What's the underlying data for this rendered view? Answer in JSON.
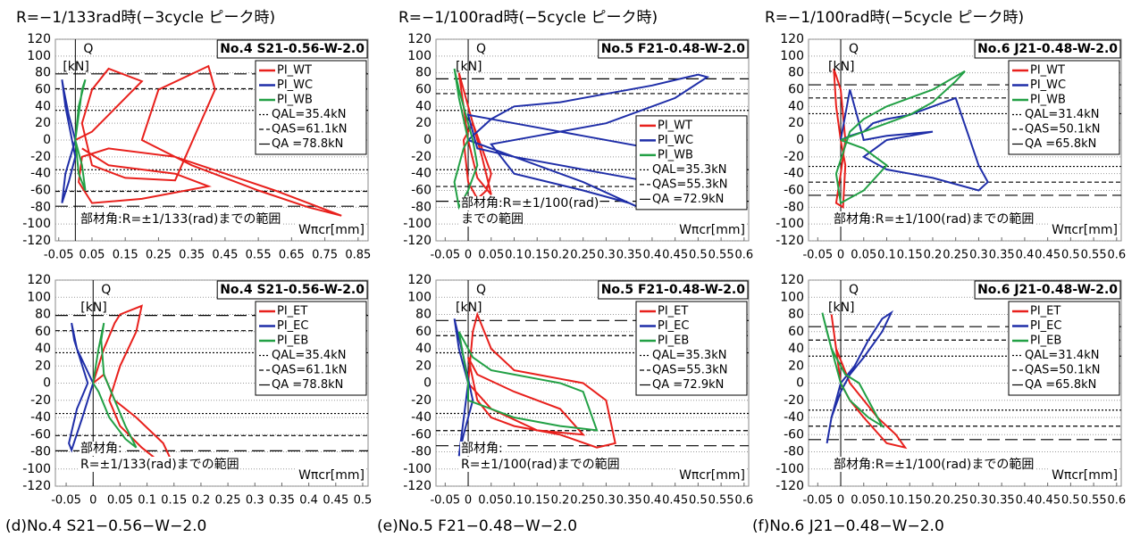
{
  "headers": [
    "R=−1/133rad時(−3cycle ピーク時)",
    "R=−1/100rad時(−5cycle ピーク時)",
    "R=−1/100rad時(−5cycle ピーク時)"
  ],
  "captions": [
    "(d)No.4 S21−0.56−W−2.0",
    "(e)No.5 F21−0.48−W−2.0",
    "(f)No.6 J21−0.48−W−2.0"
  ],
  "chart_data": [
    {
      "type": "line",
      "title": "No.4 S21-0.56-W-2.0",
      "y_label": "Q",
      "y_unit": "[kN]",
      "x_label": "Wπcr[mm]",
      "annotation": [
        "部材角:R=±1/133(rad)までの範囲"
      ],
      "legend_loc": "upper right",
      "grid": true,
      "xlim": [
        -0.06,
        0.88
      ],
      "xticks": [
        -0.05,
        0.05,
        0.15,
        0.25,
        0.35,
        0.45,
        0.55,
        0.65,
        0.75,
        0.85
      ],
      "ylim": [
        -120,
        120
      ],
      "yticks": [
        120,
        100,
        80,
        60,
        40,
        20,
        0,
        -20,
        -40,
        -60,
        -80,
        -100,
        -120
      ],
      "series": [
        {
          "name": "PI_WT",
          "color": "#e8201c",
          "x": [
            0,
            0.05,
            0.1,
            0.15,
            0.2,
            0.1,
            0.05,
            0.02,
            0.05,
            0.15,
            0.3,
            0.42,
            0.4,
            0.25,
            0.2,
            0.35,
            0.55,
            0.7,
            0.8,
            0.6,
            0.3,
            0.1,
            0.02,
            0.01,
            0.05,
            0.2,
            0.4,
            0.3,
            0.1,
            0.02
          ],
          "y": [
            0,
            10,
            30,
            50,
            70,
            85,
            60,
            20,
            -30,
            -45,
            -48,
            60,
            88,
            60,
            0,
            -30,
            -60,
            -80,
            -90,
            -60,
            -20,
            -10,
            -20,
            -50,
            -75,
            -70,
            -55,
            -40,
            -30,
            -10
          ]
        },
        {
          "name": "PI_WC",
          "color": "#1f2ea8",
          "x": [
            0,
            -0.02,
            -0.035,
            -0.04,
            -0.03,
            -0.01,
            0,
            -0.02,
            -0.04,
            -0.03,
            0
          ],
          "y": [
            0,
            30,
            60,
            72,
            40,
            0,
            -20,
            -50,
            -75,
            -40,
            0
          ]
        },
        {
          "name": "PI_WB",
          "color": "#22a045",
          "x": [
            0,
            0.01,
            0.02,
            0.03,
            0.01,
            0,
            0.02,
            0.03,
            0.01,
            0
          ],
          "y": [
            0,
            30,
            60,
            72,
            40,
            0,
            -30,
            -60,
            -40,
            0
          ]
        }
      ],
      "ref_lines": [
        {
          "label": "QAL=35.4kN",
          "value": 35.4,
          "dash": "dotted"
        },
        {
          "label": "QAS=61.1kN",
          "value": 61.1,
          "dash": "dashed"
        },
        {
          "label": "QA =78.8kN",
          "value": 78.8,
          "dash": "longdash"
        }
      ]
    },
    {
      "type": "line",
      "title": "No.5 F21-0.48-W-2.0",
      "y_label": "Q",
      "y_unit": "[kN]",
      "x_label": "Wπcr[mm]",
      "annotation": [
        "部材角:R=±1/100(rad)",
        "までの範囲"
      ],
      "legend_loc": "center right",
      "grid": true,
      "xlim": [
        -0.07,
        0.61
      ],
      "xticks": [
        -0.05,
        0,
        0.05,
        0.1,
        0.15,
        0.2,
        0.25,
        0.3,
        0.35,
        0.4,
        0.45,
        0.5,
        0.55,
        0.6
      ],
      "ylim": [
        -120,
        120
      ],
      "yticks": [
        120,
        100,
        80,
        60,
        40,
        20,
        0,
        -20,
        -40,
        -60,
        -80,
        -100,
        -120
      ],
      "series": [
        {
          "name": "PI_WT",
          "color": "#e8201c",
          "x": [
            0,
            -0.01,
            -0.02,
            -0.01,
            0.01,
            0.03,
            0.05,
            0.04,
            0.02,
            0,
            -0.01,
            0.01,
            0.03,
            0.05,
            0.02,
            0
          ],
          "y": [
            0,
            40,
            80,
            60,
            20,
            -10,
            -40,
            -60,
            -70,
            -50,
            0,
            20,
            -20,
            -65,
            -45,
            0
          ]
        },
        {
          "name": "PI_WC",
          "color": "#1f2ea8",
          "x": [
            0,
            0.05,
            0.1,
            0.2,
            0.3,
            0.4,
            0.5,
            0.52,
            0.45,
            0.3,
            0.15,
            0.05,
            0.1,
            0.25,
            0.35,
            0.37,
            0.25,
            0.1,
            0.02,
            0,
            0.1,
            0.25,
            0.4,
            0.5,
            0.3,
            0.1,
            0
          ],
          "y": [
            0,
            25,
            40,
            45,
            55,
            65,
            78,
            75,
            50,
            20,
            5,
            -5,
            -40,
            -60,
            -75,
            -80,
            -50,
            -20,
            -10,
            30,
            20,
            5,
            -10,
            -60,
            -40,
            -20,
            0
          ]
        },
        {
          "name": "PI_WB",
          "color": "#22a045",
          "x": [
            0,
            -0.02,
            -0.03,
            -0.02,
            0,
            0.01,
            0.02,
            0,
            -0.02,
            -0.03,
            -0.01,
            0
          ],
          "y": [
            0,
            50,
            85,
            60,
            20,
            0,
            -30,
            -60,
            -80,
            -50,
            -10,
            0
          ]
        }
      ],
      "ref_lines": [
        {
          "label": "QAL=35.3kN",
          "value": 35.3,
          "dash": "dotted"
        },
        {
          "label": "QAS=55.3kN",
          "value": 55.3,
          "dash": "dashed"
        },
        {
          "label": "QA =72.9kN",
          "value": 72.9,
          "dash": "longdash"
        }
      ]
    },
    {
      "type": "line",
      "title": "No.6 J21-0.48-W-2.0",
      "y_label": "Q",
      "y_unit": "[kN]",
      "x_label": "Wπcr[mm]",
      "annotation": [
        "部材角:R=±1/100(rad)までの範囲"
      ],
      "legend_loc": "upper right",
      "grid": true,
      "xlim": [
        -0.07,
        0.61
      ],
      "xticks": [
        -0.05,
        0,
        0.05,
        0.1,
        0.15,
        0.2,
        0.25,
        0.3,
        0.35,
        0.4,
        0.45,
        0.5,
        0.55,
        0.6
      ],
      "ylim": [
        -120,
        120
      ],
      "yticks": [
        120,
        100,
        80,
        60,
        40,
        20,
        0,
        -20,
        -40,
        -60,
        -80,
        -100,
        -120
      ],
      "series": [
        {
          "name": "PI_WT",
          "color": "#e8201c",
          "x": [
            0,
            -0.01,
            -0.015,
            0,
            0.01,
            0,
            -0.01,
            0.005,
            0.01,
            0
          ],
          "y": [
            0,
            40,
            85,
            60,
            0,
            -40,
            -75,
            -80,
            -30,
            0
          ]
        },
        {
          "name": "PI_WC",
          "color": "#1f2ea8",
          "x": [
            0,
            0.02,
            0.05,
            0.07,
            0.1,
            0.15,
            0.2,
            0.25,
            0.3,
            0.32,
            0.3,
            0.2,
            0.1,
            0.05,
            0.1,
            0.2,
            0.1,
            0.05,
            0.02,
            0
          ],
          "y": [
            0,
            5,
            10,
            20,
            25,
            30,
            40,
            50,
            -30,
            -50,
            -60,
            -45,
            -35,
            -20,
            0,
            10,
            5,
            0,
            60,
            0
          ]
        },
        {
          "name": "PI_WB",
          "color": "#22a045",
          "x": [
            0,
            0.05,
            0.1,
            0.15,
            0.2,
            0.25,
            0.27,
            0.2,
            0.1,
            0.05,
            0.02,
            -0.01,
            0,
            0.05,
            0.1,
            0.05,
            0
          ],
          "y": [
            0,
            10,
            20,
            30,
            45,
            70,
            82,
            60,
            40,
            25,
            10,
            -40,
            -75,
            -60,
            -30,
            -10,
            0
          ]
        }
      ],
      "ref_lines": [
        {
          "label": "QAL=31.4kN",
          "value": 31.4,
          "dash": "dotted"
        },
        {
          "label": "QAS=50.1kN",
          "value": 50.1,
          "dash": "dashed"
        },
        {
          "label": "QA =65.8kN",
          "value": 65.8,
          "dash": "longdash"
        }
      ]
    },
    {
      "type": "line",
      "title": "No.4 S21-0.56-W-2.0",
      "y_label": "Q",
      "y_unit": "[kN]",
      "x_label": "Wπcr[mm]",
      "annotation": [
        "部材角:",
        "R=±1/133(rad)までの範囲"
      ],
      "legend_loc": "upper right",
      "grid": true,
      "xlim": [
        -0.07,
        0.51
      ],
      "xticks": [
        -0.05,
        0,
        0.05,
        0.1,
        0.15,
        0.2,
        0.25,
        0.3,
        0.35,
        0.4,
        0.45,
        0.5
      ],
      "ylim": [
        -120,
        120
      ],
      "yticks": [
        120,
        100,
        80,
        60,
        40,
        20,
        0,
        -20,
        -40,
        -60,
        -80,
        -100,
        -120
      ],
      "series": [
        {
          "name": "PI_ET",
          "color": "#e8201c",
          "x": [
            0,
            0.02,
            0.04,
            0.05,
            0.07,
            0.09,
            0.08,
            0.05,
            0.03,
            0.05,
            0.09,
            0.12,
            0.15,
            0.13,
            0.08,
            0.04,
            0.02,
            0
          ],
          "y": [
            0,
            40,
            70,
            80,
            85,
            90,
            60,
            20,
            -20,
            -50,
            -75,
            -90,
            -97,
            -70,
            -40,
            -20,
            10,
            0
          ]
        },
        {
          "name": "PI_EC",
          "color": "#1f2ea8",
          "x": [
            0,
            -0.03,
            -0.04,
            -0.035,
            -0.02,
            -0.01,
            -0.03,
            -0.045,
            -0.04,
            -0.02,
            0
          ],
          "y": [
            0,
            40,
            70,
            50,
            20,
            0,
            -30,
            -70,
            -78,
            -40,
            0
          ]
        },
        {
          "name": "PI_EB",
          "color": "#22a045",
          "x": [
            0,
            0.01,
            0.02,
            0.015,
            0.02,
            0.04,
            0.06,
            0.08,
            0.06,
            0.03,
            0.01,
            0
          ],
          "y": [
            0,
            40,
            70,
            50,
            10,
            -20,
            -50,
            -75,
            -65,
            -40,
            -10,
            0
          ]
        }
      ],
      "ref_lines": [
        {
          "label": "QAL=35.4kN",
          "value": 35.4,
          "dash": "dotted"
        },
        {
          "label": "QAS=61.1kN",
          "value": 61.1,
          "dash": "dashed"
        },
        {
          "label": "QA =78.8kN",
          "value": 78.8,
          "dash": "longdash"
        }
      ]
    },
    {
      "type": "line",
      "title": "No.5 F21-0.48-W-2.0",
      "y_label": "Q",
      "y_unit": "[kN]",
      "x_label": "Wπcr[mm]",
      "annotation": [
        "部材角:",
        "R=±1/100(rad)までの範囲"
      ],
      "legend_loc": "upper right",
      "grid": true,
      "xlim": [
        -0.07,
        0.61
      ],
      "xticks": [
        -0.05,
        0,
        0.05,
        0.1,
        0.15,
        0.2,
        0.25,
        0.3,
        0.35,
        0.4,
        0.45,
        0.5,
        0.55,
        0.6
      ],
      "ylim": [
        -120,
        120
      ],
      "yticks": [
        120,
        100,
        80,
        60,
        40,
        20,
        0,
        -20,
        -40,
        -60,
        -80,
        -100,
        -120
      ],
      "series": [
        {
          "name": "PI_ET",
          "color": "#e8201c",
          "x": [
            0,
            0.01,
            0.02,
            0.05,
            0.1,
            0.15,
            0.2,
            0.25,
            0.3,
            0.32,
            0.28,
            0.2,
            0.1,
            0.05,
            0.02,
            0,
            0.02,
            0.1,
            0.2,
            0.25,
            0.15,
            0.05,
            0
          ],
          "y": [
            0,
            60,
            80,
            40,
            15,
            10,
            5,
            0,
            -20,
            -70,
            -75,
            -60,
            -50,
            -40,
            -20,
            30,
            10,
            -10,
            -30,
            -60,
            -55,
            -30,
            0
          ]
        },
        {
          "name": "PI_EC",
          "color": "#1f2ea8",
          "x": [
            0,
            -0.02,
            -0.03,
            -0.01,
            0.01,
            -0.01,
            -0.02,
            0
          ],
          "y": [
            0,
            40,
            75,
            30,
            -20,
            -60,
            -85,
            0
          ]
        },
        {
          "name": "PI_EB",
          "color": "#22a045",
          "x": [
            0,
            -0.02,
            0.01,
            0.05,
            0.1,
            0.15,
            0.2,
            0.25,
            0.28,
            0.2,
            0.1,
            0.05,
            0,
            0
          ],
          "y": [
            0,
            60,
            30,
            15,
            10,
            5,
            0,
            -10,
            -55,
            -50,
            -40,
            -30,
            -20,
            0
          ]
        }
      ],
      "ref_lines": [
        {
          "label": "QAL=35.3kN",
          "value": 35.3,
          "dash": "dotted"
        },
        {
          "label": "QAS=55.3kN",
          "value": 55.3,
          "dash": "dashed"
        },
        {
          "label": "QA =72.9kN",
          "value": 72.9,
          "dash": "longdash"
        }
      ]
    },
    {
      "type": "line",
      "title": "No.6 J21-0.48-W-2.0",
      "y_label": "Q",
      "y_unit": "[kN]",
      "x_label": "Wπcr[mm]",
      "annotation": [
        "部材角:R=±1/100(rad)までの範囲"
      ],
      "legend_loc": "upper right",
      "grid": true,
      "xlim": [
        -0.07,
        0.61
      ],
      "xticks": [
        -0.05,
        0,
        0.05,
        0.1,
        0.15,
        0.2,
        0.25,
        0.3,
        0.35,
        0.4,
        0.45,
        0.5,
        0.55,
        0.6
      ],
      "ylim": [
        -120,
        120
      ],
      "yticks": [
        120,
        100,
        80,
        60,
        40,
        20,
        0,
        -20,
        -40,
        -60,
        -80,
        -100,
        -120
      ],
      "series": [
        {
          "name": "PI_ET",
          "color": "#e8201c",
          "x": [
            0,
            -0.02,
            -0.01,
            0.02,
            0.05,
            0.08,
            0.12,
            0.14,
            0.1,
            0.05,
            0.02,
            0
          ],
          "y": [
            0,
            80,
            40,
            0,
            -20,
            -40,
            -60,
            -75,
            -70,
            -40,
            -20,
            0
          ]
        },
        {
          "name": "PI_EC",
          "color": "#1f2ea8",
          "x": [
            0,
            0.03,
            0.06,
            0.09,
            0.11,
            0.09,
            0.05,
            0.02,
            0,
            -0.02,
            -0.03,
            -0.02,
            0
          ],
          "y": [
            0,
            20,
            50,
            75,
            82,
            60,
            30,
            10,
            -10,
            -40,
            -70,
            -40,
            0
          ]
        },
        {
          "name": "PI_EB",
          "color": "#22a045",
          "x": [
            0,
            -0.03,
            -0.04,
            -0.02,
            0.01,
            0.04,
            0.07,
            0.09,
            0.06,
            0.02,
            0
          ],
          "y": [
            0,
            60,
            82,
            40,
            10,
            0,
            -30,
            -50,
            -40,
            -20,
            0
          ]
        }
      ],
      "ref_lines": [
        {
          "label": "QAL=31.4kN",
          "value": 31.4,
          "dash": "dotted"
        },
        {
          "label": "QAS=50.1kN",
          "value": 50.1,
          "dash": "dashed"
        },
        {
          "label": "QA =65.8kN",
          "value": 65.8,
          "dash": "longdash"
        }
      ]
    }
  ]
}
